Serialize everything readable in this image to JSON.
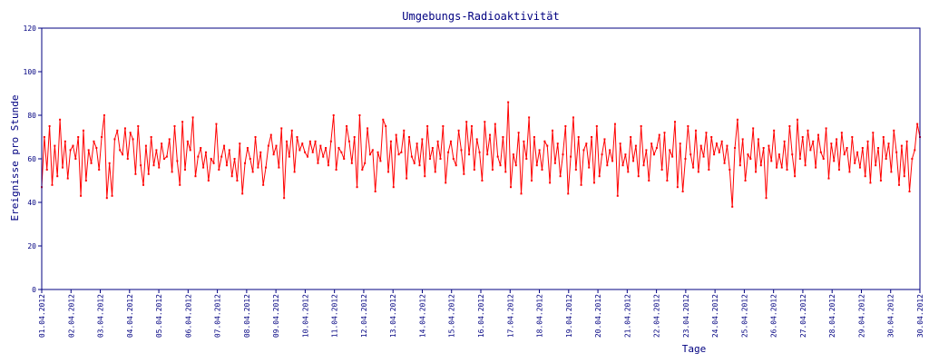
{
  "chart_data": {
    "type": "line",
    "title": "Umgebungs-Radioaktivität",
    "xlabel": "Tage",
    "ylabel": "Ereignisse pro Stunde",
    "ylim": [
      0,
      120
    ],
    "yticks": [
      0,
      20,
      40,
      60,
      80,
      100,
      120
    ],
    "grid": false,
    "legend": "none",
    "line_color": "#ff0000",
    "axis_color": "#000080",
    "x_tick_labels": [
      "01.04.2012",
      "02.04.2012",
      "03.04.2012",
      "04.04.2012",
      "05.04.2012",
      "06.04.2012",
      "07.04.2012",
      "08.04.2012",
      "09.04.2012",
      "10.04.2012",
      "11.04.2012",
      "12.04.2012",
      "13.04.2012",
      "14.04.2012",
      "15.04.2012",
      "16.04.2012",
      "17.04.2012",
      "18.04.2012",
      "19.04.2012",
      "20.04.2012",
      "21.04.2012",
      "22.04.2012",
      "23.04.2012",
      "24.04.2012",
      "25.04.2012",
      "26.04.2012",
      "27.04.2012",
      "28.04.2012",
      "29.04.2012",
      "30.04.2012",
      "30.04.2012"
    ],
    "series": [
      {
        "sampling": "6-hourly approximation of hourly counts",
        "x_start": "01.04.2012 00:00",
        "values": [
          47,
          70,
          55,
          75,
          48,
          66,
          52,
          78,
          56,
          68,
          51,
          64,
          66,
          60,
          70,
          43,
          73,
          50,
          64,
          58,
          68,
          65,
          55,
          70,
          80,
          42,
          58,
          43,
          69,
          73,
          64,
          62,
          74,
          60,
          72,
          69,
          53,
          75,
          57,
          48,
          66,
          53,
          70,
          57,
          64,
          56,
          67,
          60,
          61,
          69,
          54,
          75,
          59,
          48,
          77,
          55,
          68,
          64,
          79,
          52,
          61,
          65,
          56,
          63,
          50,
          60,
          58,
          76,
          55,
          61,
          66,
          57,
          64,
          52,
          60,
          50,
          67,
          44,
          58,
          65,
          60,
          54,
          70,
          56,
          63,
          48,
          56,
          66,
          71,
          62,
          66,
          56,
          74,
          42,
          68,
          61,
          73,
          54,
          70,
          64,
          67,
          63,
          61,
          68,
          63,
          68,
          58,
          66,
          61,
          65,
          57,
          68,
          80,
          55,
          65,
          63,
          60,
          75,
          68,
          58,
          70,
          47,
          80,
          55,
          58,
          74,
          62,
          64,
          45,
          63,
          59,
          78,
          75,
          54,
          68,
          47,
          71,
          62,
          63,
          73,
          51,
          70,
          61,
          58,
          67,
          57,
          69,
          52,
          75,
          60,
          65,
          54,
          68,
          60,
          75,
          49,
          63,
          68,
          60,
          57,
          73,
          64,
          53,
          77,
          62,
          75,
          55,
          69,
          63,
          50,
          77,
          62,
          71,
          55,
          76,
          61,
          57,
          70,
          54,
          86,
          47,
          62,
          57,
          72,
          44,
          68,
          60,
          79,
          50,
          70,
          57,
          64,
          55,
          68,
          66,
          49,
          73,
          58,
          67,
          52,
          62,
          75,
          44,
          61,
          79,
          55,
          70,
          48,
          64,
          67,
          56,
          70,
          49,
          75,
          52,
          62,
          69,
          57,
          64,
          59,
          76,
          43,
          67,
          57,
          62,
          54,
          70,
          59,
          66,
          52,
          75,
          57,
          64,
          50,
          67,
          62,
          65,
          71,
          55,
          72,
          50,
          64,
          61,
          77,
          47,
          67,
          45,
          60,
          75,
          62,
          56,
          73,
          54,
          66,
          61,
          72,
          55,
          70,
          62,
          67,
          63,
          68,
          58,
          66,
          55,
          38,
          65,
          78,
          57,
          69,
          50,
          62,
          60,
          74,
          54,
          69,
          57,
          65,
          42,
          66,
          59,
          73,
          56,
          62,
          56,
          68,
          55,
          75,
          62,
          52,
          78,
          60,
          70,
          57,
          73,
          64,
          68,
          56,
          71,
          63,
          60,
          74,
          51,
          67,
          59,
          69,
          55,
          72,
          62,
          65,
          54,
          70,
          58,
          63,
          56,
          65,
          52,
          68,
          49,
          72,
          57,
          65,
          50,
          70,
          60,
          67,
          54,
          73,
          63,
          48,
          66,
          52,
          68,
          45,
          60,
          64,
          76,
          70
        ]
      }
    ]
  }
}
